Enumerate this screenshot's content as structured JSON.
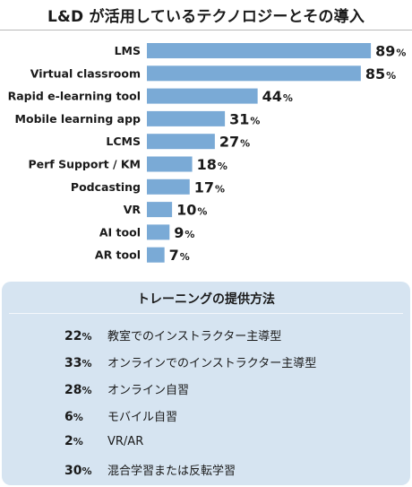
{
  "title": "L&D が活用しているテクノロジーとその導入",
  "chart_data": {
    "type": "bar",
    "orientation": "horizontal",
    "categories": [
      "LMS",
      "Virtual classroom",
      "Rapid e-learning tool",
      "Mobile learning app",
      "LCMS",
      "Perf Support / KM",
      "Podcasting",
      "VR",
      "AI tool",
      "AR tool"
    ],
    "values": [
      89,
      85,
      44,
      31,
      27,
      18,
      17,
      10,
      9,
      7
    ],
    "unit": "%",
    "xlim": [
      0,
      100
    ],
    "bar_color": "#7aaad6",
    "grid": false,
    "legend": "none"
  },
  "training": {
    "title": "トレーニングの提供方法",
    "methods": [
      {
        "value": "22",
        "unit": "%",
        "label": "教室でのインストラクター主導型"
      },
      {
        "value": "33",
        "unit": "%",
        "label": "オンラインでのインストラクター主導型"
      },
      {
        "value": "28",
        "unit": "%",
        "label": "オンライン自習"
      },
      {
        "value": "6",
        "unit": "%",
        "label": "モバイル自習"
      },
      {
        "value": "2",
        "unit": "%",
        "label": "VR/AR"
      },
      {
        "value": "30",
        "unit": "%",
        "label": "混合学習または反転学習"
      }
    ],
    "panel_color": "#d6e4f1"
  }
}
